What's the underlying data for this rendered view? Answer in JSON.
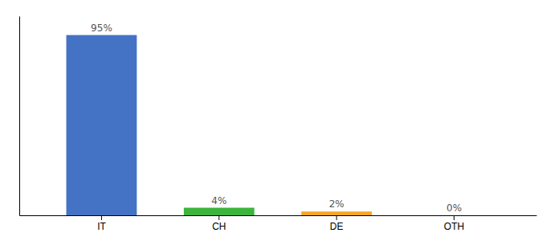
{
  "chart_data": {
    "type": "bar",
    "categories": [
      "IT",
      "CH",
      "DE",
      "OTH"
    ],
    "values": [
      95,
      4,
      2,
      0
    ],
    "value_labels": [
      "95%",
      "4%",
      "2%",
      "0%"
    ],
    "colors": [
      "#4472c4",
      "#3db53d",
      "#f5a623",
      "#f5a623"
    ],
    "ylim": [
      0,
      105
    ],
    "data_labels": true,
    "tick_labels": "x",
    "grid": false
  }
}
